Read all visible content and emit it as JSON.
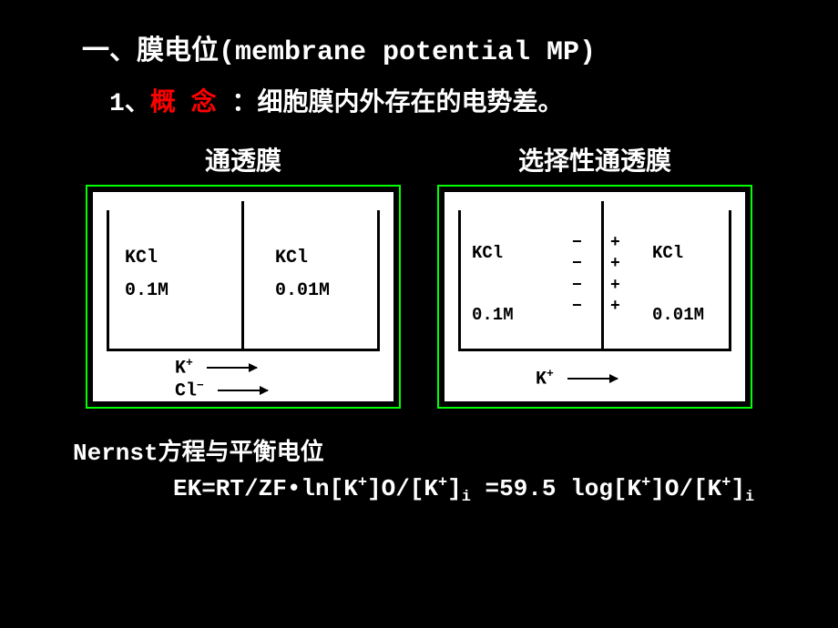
{
  "title": {
    "number": "一、",
    "text_cn": "膜电位",
    "text_en": "(membrane potential MP)"
  },
  "concept_line": {
    "number": "1、",
    "label": "概 念",
    "colon": " ：",
    "definition": "细胞膜内外存在的电势差。"
  },
  "diagram1": {
    "title": "通透膜",
    "left_label": "KCl",
    "left_conc": "0.1M",
    "right_label": "KCl",
    "right_conc": "0.01M",
    "ion1": "K",
    "ion1_charge": "+",
    "ion2": "Cl",
    "ion2_charge": "−"
  },
  "diagram2": {
    "title": "选择性通透膜",
    "left_label": "KCl",
    "left_conc": "0.1M",
    "right_label": "KCl",
    "right_conc": "0.01M",
    "minus_col": "−\n−\n−\n−",
    "plus_col": "+\n+\n+\n+",
    "ion1": "K",
    "ion1_charge": "+"
  },
  "equation": {
    "line1": "Nernst方程与平衡电位",
    "line2_a": "EK=RT/ZF•ln[K",
    "line2_b": "]O/[K",
    "line2_c": "]",
    "line2_d": " =59.5 log[K",
    "line2_e": "]O/[K",
    "line2_f": "]",
    "sup": "+",
    "sub": "i"
  },
  "colors": {
    "background": "#000000",
    "text": "#ffffff",
    "highlight": "#ff0000",
    "border": "#00ff00",
    "diagram_bg": "#ffffff",
    "diagram_fg": "#000000"
  }
}
